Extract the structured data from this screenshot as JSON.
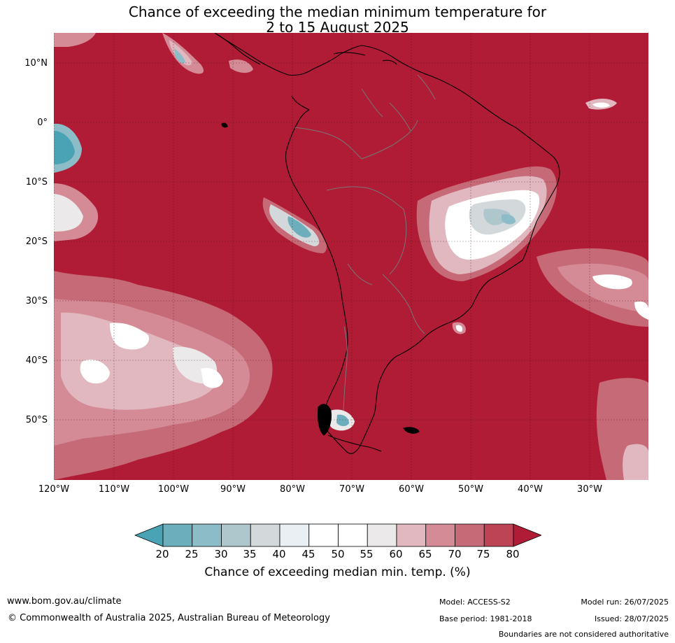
{
  "title": {
    "line1": "Chance of exceeding the median minimum temperature for",
    "line2": "2 to 15 August 2025"
  },
  "map": {
    "lat_labels": [
      "10°N",
      "0°",
      "10°S",
      "20°S",
      "30°S",
      "40°S",
      "50°S"
    ],
    "lon_labels": [
      "120°W",
      "110°W",
      "100°W",
      "90°W",
      "80°W",
      "70°W",
      "60°W",
      "50°W",
      "40°W",
      "30°W"
    ]
  },
  "colorbar": {
    "ticks": [
      "20",
      "25",
      "30",
      "35",
      "40",
      "45",
      "50",
      "55",
      "60",
      "65",
      "70",
      "75",
      "80"
    ],
    "colors": [
      "#4aa3b4",
      "#6caebc",
      "#8cbcc7",
      "#aec7cd",
      "#d3d9db",
      "#e9eff2",
      "#ffffff",
      "#ffffff",
      "#ebe9ea",
      "#e1b8bf",
      "#d48b95",
      "#c76a77",
      "#bd4455",
      "#b01c36"
    ],
    "label": "Chance of exceeding median min. temp. (%)"
  },
  "footer": {
    "website": "www.bom.gov.au/climate",
    "copyright": "© Commonwealth of Australia 2025, Australian Bureau of Meteorology",
    "model": "Model: ACCESS-S2",
    "base_period": "Base period: 1981-2018",
    "model_run": "Model run: 26/07/2025",
    "issued": "Issued: 28/07/2025",
    "disclaimer": "Boundaries are not considered authoritative"
  }
}
